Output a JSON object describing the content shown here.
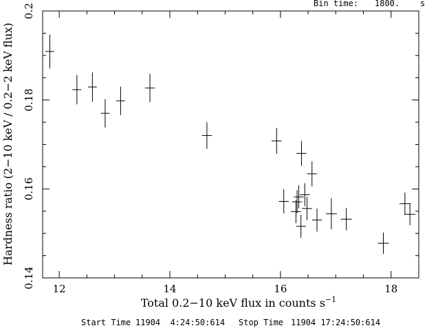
{
  "header": {
    "bin_time_label": "Bin time:",
    "bin_time_value": "1800.",
    "bin_time_unit": "s"
  },
  "footer": {
    "start_label": "Start Time",
    "start_value": "11904  4:24:50:614",
    "stop_label": "Stop Time",
    "stop_value": "11904 17:24:50:614"
  },
  "chart_data": {
    "type": "scatter",
    "title": "",
    "xlabel_main": "Total 0.2−10 keV flux in counts s",
    "xlabel_sup": "−1",
    "ylabel": "Hardness ratio (2−10 keV / 0.2−2 keV flux)",
    "xlim": [
      11.7,
      18.5
    ],
    "ylim": [
      0.14,
      0.2
    ],
    "x_ticks": [
      12,
      14,
      16,
      18
    ],
    "x_tick_labels": [
      "12",
      "14",
      "16",
      "18"
    ],
    "y_ticks": [
      0.14,
      0.16,
      0.18,
      0.2
    ],
    "y_tick_labels": [
      "0.14",
      "0.16",
      "0.18",
      "0.2"
    ],
    "x_minor_step": 0.5,
    "y_minor_step": 0.005,
    "grid": false,
    "points": [
      {
        "x": 11.83,
        "y": 0.1909,
        "xerr": 0.08,
        "yerr": 0.0038
      },
      {
        "x": 12.32,
        "y": 0.1823,
        "xerr": 0.08,
        "yerr": 0.0033
      },
      {
        "x": 12.6,
        "y": 0.1829,
        "xerr": 0.08,
        "yerr": 0.0033
      },
      {
        "x": 12.83,
        "y": 0.177,
        "xerr": 0.08,
        "yerr": 0.0032
      },
      {
        "x": 13.11,
        "y": 0.1798,
        "xerr": 0.08,
        "yerr": 0.0032
      },
      {
        "x": 13.64,
        "y": 0.1827,
        "xerr": 0.09,
        "yerr": 0.0032
      },
      {
        "x": 14.67,
        "y": 0.172,
        "xerr": 0.09,
        "yerr": 0.003
      },
      {
        "x": 15.93,
        "y": 0.1708,
        "xerr": 0.09,
        "yerr": 0.0029
      },
      {
        "x": 16.06,
        "y": 0.1572,
        "xerr": 0.09,
        "yerr": 0.0027
      },
      {
        "x": 16.28,
        "y": 0.1549,
        "xerr": 0.09,
        "yerr": 0.0026
      },
      {
        "x": 16.3,
        "y": 0.1571,
        "xerr": 0.09,
        "yerr": 0.0026
      },
      {
        "x": 16.33,
        "y": 0.1582,
        "xerr": 0.09,
        "yerr": 0.0026
      },
      {
        "x": 16.37,
        "y": 0.1516,
        "xerr": 0.09,
        "yerr": 0.0026
      },
      {
        "x": 16.38,
        "y": 0.168,
        "xerr": 0.09,
        "yerr": 0.0028
      },
      {
        "x": 16.44,
        "y": 0.1587,
        "xerr": 0.09,
        "yerr": 0.0026
      },
      {
        "x": 16.48,
        "y": 0.1556,
        "xerr": 0.09,
        "yerr": 0.0026
      },
      {
        "x": 16.57,
        "y": 0.1634,
        "xerr": 0.09,
        "yerr": 0.0028
      },
      {
        "x": 16.66,
        "y": 0.153,
        "xerr": 0.09,
        "yerr": 0.0026
      },
      {
        "x": 16.92,
        "y": 0.1544,
        "xerr": 0.1,
        "yerr": 0.0035
      },
      {
        "x": 17.19,
        "y": 0.1532,
        "xerr": 0.1,
        "yerr": 0.0025
      },
      {
        "x": 17.86,
        "y": 0.1478,
        "xerr": 0.1,
        "yerr": 0.0024
      },
      {
        "x": 18.25,
        "y": 0.1567,
        "xerr": 0.1,
        "yerr": 0.0025
      },
      {
        "x": 18.34,
        "y": 0.1543,
        "xerr": 0.1,
        "yerr": 0.0025
      }
    ]
  }
}
